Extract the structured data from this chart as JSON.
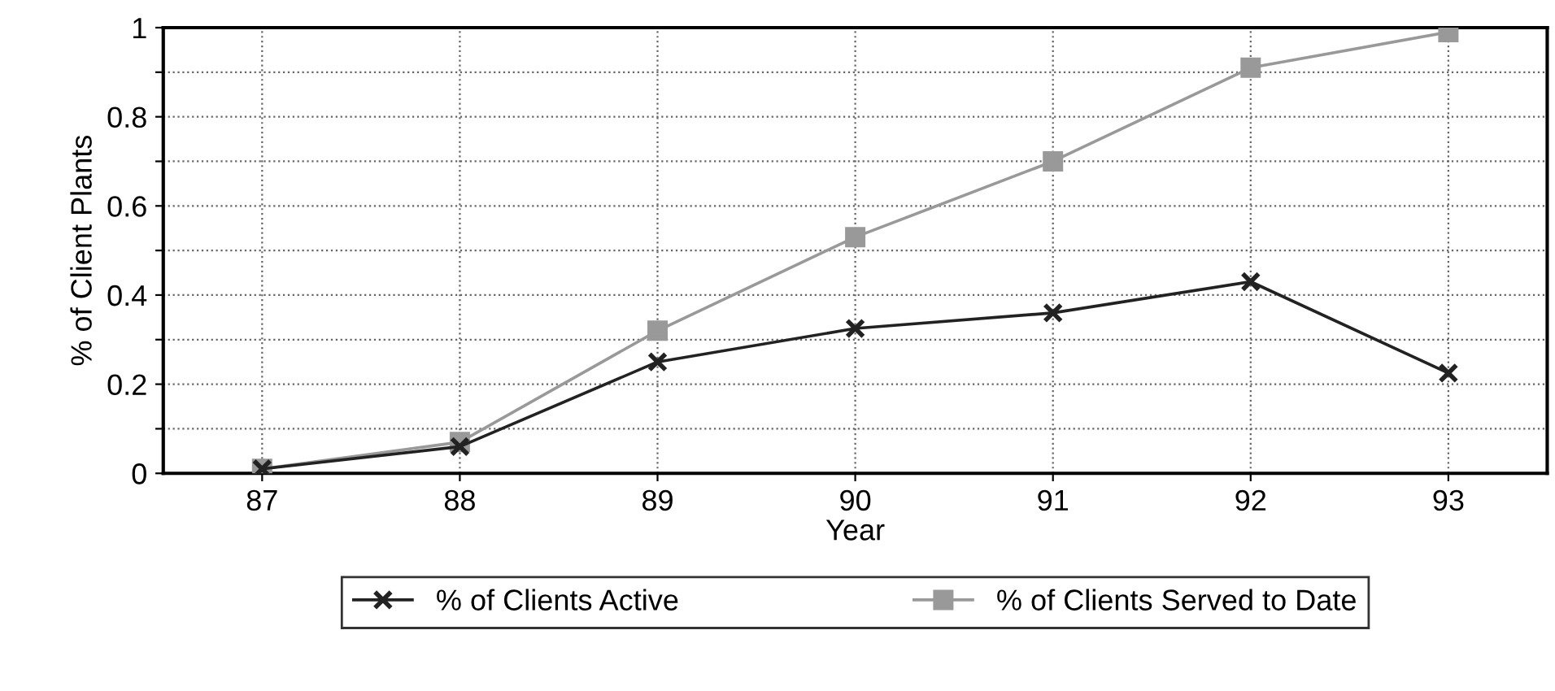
{
  "chart_data": {
    "type": "line",
    "xlabel": "Year",
    "ylabel": "% of Client Plants",
    "categories": [
      "87",
      "88",
      "89",
      "90",
      "91",
      "92",
      "93"
    ],
    "series": [
      {
        "name": "% of Clients Active",
        "color": "#222222",
        "marker": "cross",
        "values": [
          0.01,
          0.06,
          0.25,
          0.325,
          0.36,
          0.43,
          0.225
        ]
      },
      {
        "name": "% of Clients Served to Date",
        "color": "#999999",
        "marker": "square",
        "values": [
          0.01,
          0.07,
          0.32,
          0.53,
          0.7,
          0.91,
          0.99
        ]
      }
    ],
    "ylim": [
      0,
      1
    ],
    "yticks": [
      0,
      {
        "value": 0.1,
        "label": null
      },
      0.2,
      {
        "value": 0.3,
        "label": null
      },
      0.4,
      {
        "value": 0.5,
        "label": null
      },
      0.6,
      {
        "value": 0.7,
        "label": null
      },
      0.8,
      {
        "value": 0.9,
        "label": null
      },
      1
    ],
    "grid": true,
    "legend": "bottom",
    "line_style": "solid"
  }
}
